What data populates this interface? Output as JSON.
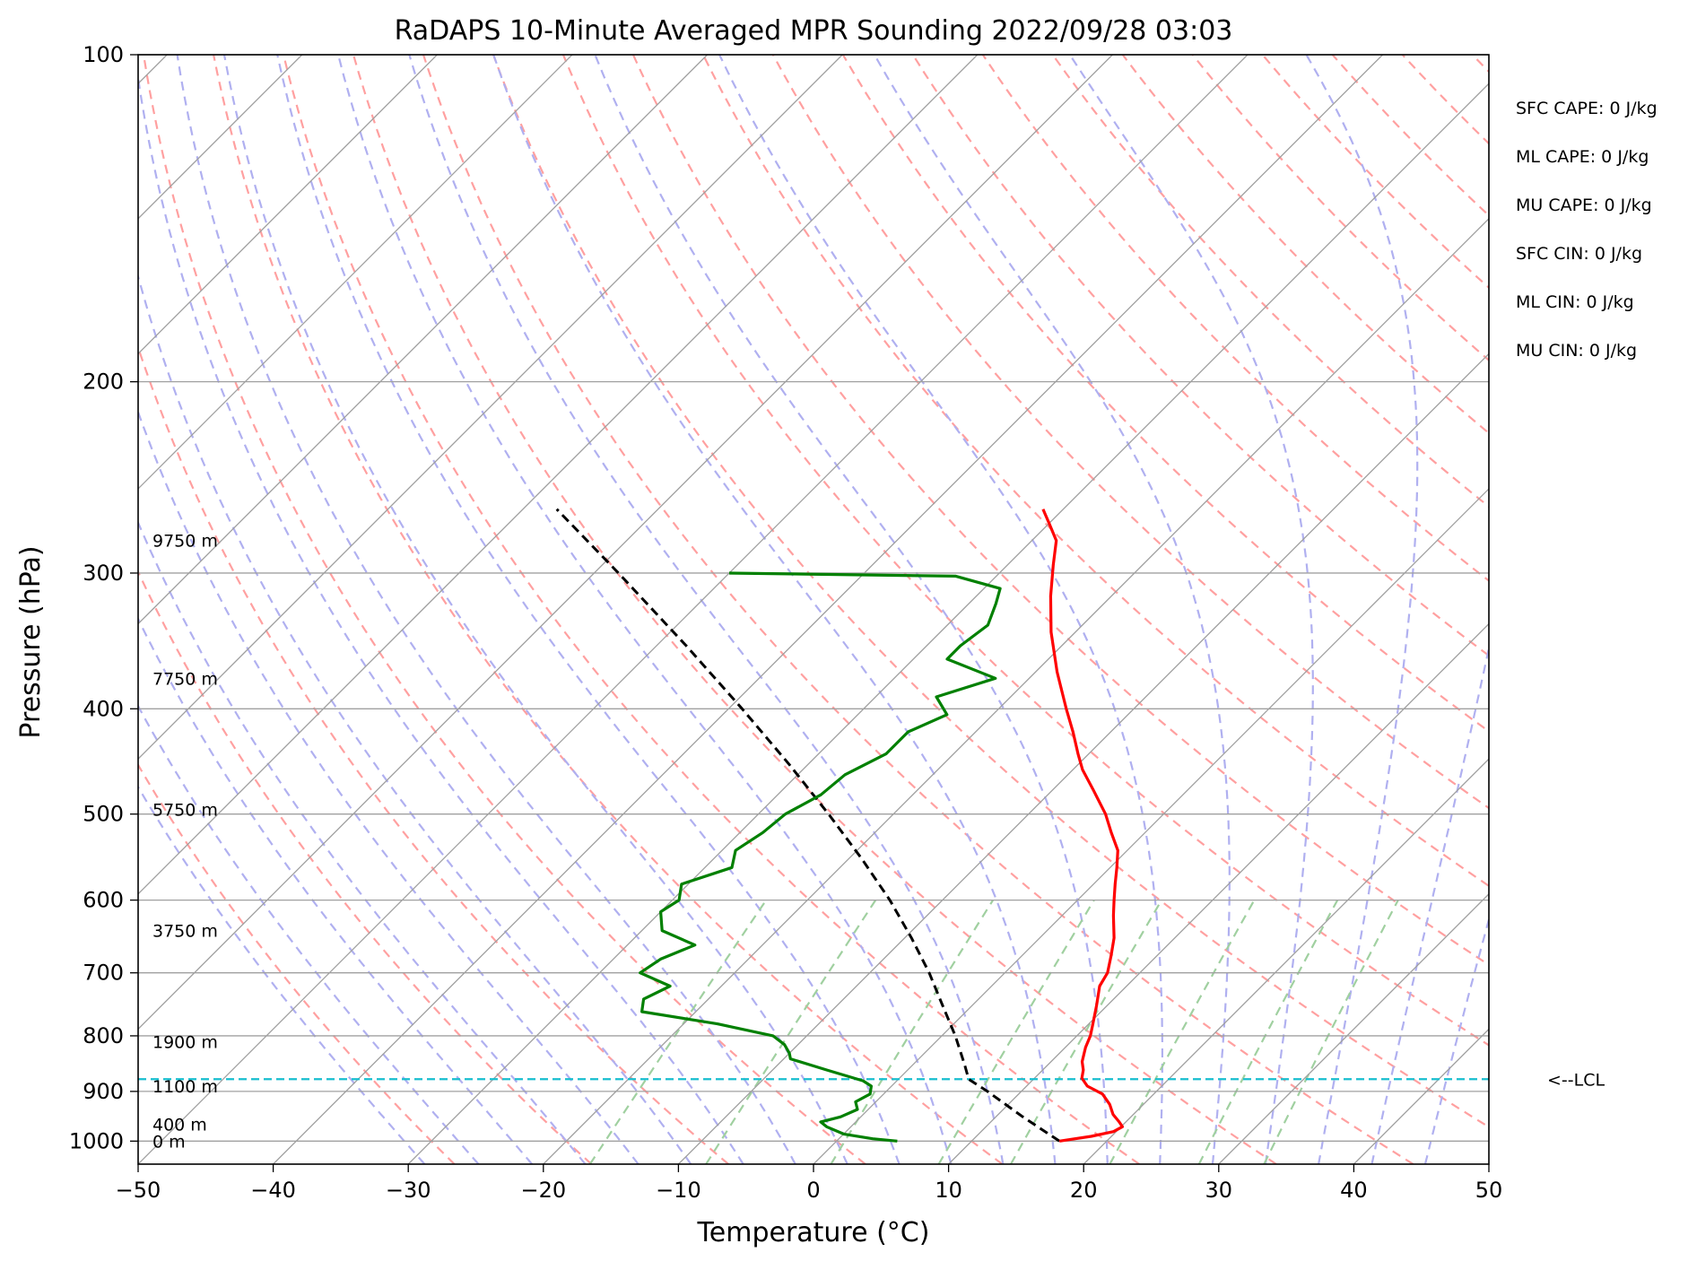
{
  "chart_data": {
    "type": "line",
    "title": "RaDAPS 10-Minute Averaged MPR Sounding 2022/09/28 03:03",
    "xlabel": "Temperature (°C)",
    "ylabel": "Pressure (hPa)",
    "xlim": [
      -50,
      50
    ],
    "ylim": [
      1050,
      100
    ],
    "y_scale": "log",
    "skew_deg": 45,
    "grid": true,
    "x_ticks": [
      "−50",
      "−40",
      "−30",
      "−20",
      "−10",
      "0",
      "10",
      "20",
      "30",
      "40",
      "50"
    ],
    "y_ticks": [
      "100",
      "200",
      "300",
      "400",
      "500",
      "600",
      "700",
      "800",
      "900",
      "1000"
    ],
    "height_labels": [
      {
        "p": 1000,
        "text": "0 m"
      },
      {
        "p": 965,
        "text": "400 m"
      },
      {
        "p": 890,
        "text": "1100 m"
      },
      {
        "p": 810,
        "text": "1900 m"
      },
      {
        "p": 640,
        "text": "3750 m"
      },
      {
        "p": 495,
        "text": "5750 m"
      },
      {
        "p": 375,
        "text": "7750 m"
      },
      {
        "p": 280,
        "text": "9750 m"
      }
    ],
    "lcl": {
      "p": 877,
      "label": "<--LCL"
    },
    "stats": [
      "SFC CAPE: 0 J/kg",
      "ML CAPE: 0 J/kg",
      "MU CAPE: 0 J/kg",
      "SFC CIN: 0 J/kg",
      "ML CIN: 0 J/kg",
      "MU CIN: 0 J/kg"
    ],
    "temperature": [
      [
        1000,
        16.5
      ],
      [
        990,
        18.5
      ],
      [
        980,
        19.8
      ],
      [
        970,
        20.1
      ],
      [
        960,
        19.5
      ],
      [
        945,
        18.5
      ],
      [
        925,
        17.5
      ],
      [
        905,
        16.2
      ],
      [
        890,
        14.5
      ],
      [
        875,
        13.5
      ],
      [
        860,
        13.0
      ],
      [
        845,
        12.3
      ],
      [
        820,
        11.5
      ],
      [
        800,
        11.0
      ],
      [
        780,
        10.3
      ],
      [
        750,
        9.2
      ],
      [
        720,
        8.0
      ],
      [
        700,
        7.6
      ],
      [
        675,
        6.6
      ],
      [
        650,
        5.5
      ],
      [
        620,
        3.8
      ],
      [
        600,
        2.7
      ],
      [
        580,
        1.6
      ],
      [
        560,
        0.5
      ],
      [
        540,
        -0.7
      ],
      [
        520,
        -2.5
      ],
      [
        500,
        -4.3
      ],
      [
        475,
        -7.0
      ],
      [
        455,
        -9.3
      ],
      [
        440,
        -10.8
      ],
      [
        420,
        -12.8
      ],
      [
        400,
        -15.0
      ],
      [
        370,
        -18.4
      ],
      [
        340,
        -21.8
      ],
      [
        315,
        -24.5
      ],
      [
        295,
        -26.6
      ],
      [
        280,
        -28.2
      ],
      [
        270,
        -30.0
      ],
      [
        262,
        -31.5
      ]
    ],
    "dewpoint": [
      [
        1000,
        4.5
      ],
      [
        995,
        2.5
      ],
      [
        985,
        0.0
      ],
      [
        970,
        -1.8
      ],
      [
        960,
        -2.6
      ],
      [
        950,
        -1.5
      ],
      [
        935,
        -0.8
      ],
      [
        920,
        -1.5
      ],
      [
        905,
        -1.0
      ],
      [
        890,
        -1.5
      ],
      [
        880,
        -2.5
      ],
      [
        860,
        -6.0
      ],
      [
        840,
        -9.5
      ],
      [
        830,
        -10.0
      ],
      [
        815,
        -11.0
      ],
      [
        800,
        -12.5
      ],
      [
        780,
        -17.5
      ],
      [
        760,
        -24.0
      ],
      [
        740,
        -24.8
      ],
      [
        720,
        -23.8
      ],
      [
        700,
        -27.0
      ],
      [
        680,
        -26.5
      ],
      [
        660,
        -25.0
      ],
      [
        640,
        -28.5
      ],
      [
        615,
        -30.0
      ],
      [
        600,
        -29.5
      ],
      [
        580,
        -30.5
      ],
      [
        560,
        -28.0
      ],
      [
        540,
        -29.0
      ],
      [
        520,
        -28.3
      ],
      [
        500,
        -28.0
      ],
      [
        480,
        -26.8
      ],
      [
        460,
        -26.5
      ],
      [
        440,
        -25.0
      ],
      [
        420,
        -25.0
      ],
      [
        405,
        -23.4
      ],
      [
        390,
        -25.5
      ],
      [
        375,
        -22.5
      ],
      [
        360,
        -27.5
      ],
      [
        350,
        -27.5
      ],
      [
        335,
        -27.0
      ],
      [
        320,
        -28.0
      ],
      [
        310,
        -28.8
      ],
      [
        302,
        -33.0
      ],
      [
        300,
        -50.0
      ]
    ],
    "parcel": [
      [
        1000,
        16.5
      ],
      [
        950,
        12.0
      ],
      [
        900,
        7.5
      ],
      [
        877,
        5.2
      ],
      [
        850,
        3.8
      ],
      [
        800,
        1.0
      ],
      [
        750,
        -2.2
      ],
      [
        700,
        -5.6
      ],
      [
        650,
        -9.5
      ],
      [
        600,
        -13.9
      ],
      [
        550,
        -19.0
      ],
      [
        500,
        -24.8
      ],
      [
        450,
        -31.4
      ],
      [
        400,
        -39.0
      ],
      [
        350,
        -47.8
      ],
      [
        300,
        -58.2
      ],
      [
        262,
        -67.5
      ]
    ],
    "colors": {
      "temperature": "#ff0000",
      "dewpoint": "#008000",
      "parcel": "#000000",
      "lcl": "#17becf",
      "isotherm": "#a0a0a0",
      "dry_adiabat": "#ffa0a0",
      "moist_adiabat": "#b0b0f0",
      "mixing_ratio": "#a0d0a0"
    }
  }
}
